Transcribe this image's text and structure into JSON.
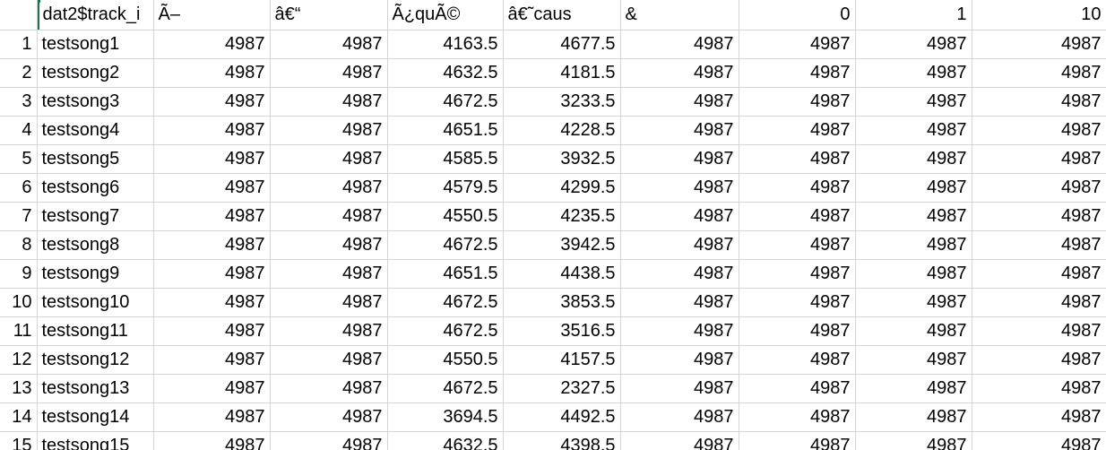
{
  "header": [
    "",
    "dat2$track_i",
    "Ã–",
    "â€“",
    "Ã¿quÃ©",
    "â€˜caus",
    "&",
    "0",
    "1",
    "10"
  ],
  "header_align": [
    "right",
    "left",
    "left",
    "left",
    "left",
    "left",
    "left",
    "right",
    "right",
    "right"
  ],
  "rows": [
    [
      "1",
      "testsong1",
      "4987",
      "4987",
      "4163.5",
      "4677.5",
      "4987",
      "4987",
      "4987",
      "4987"
    ],
    [
      "2",
      "testsong2",
      "4987",
      "4987",
      "4632.5",
      "4181.5",
      "4987",
      "4987",
      "4987",
      "4987"
    ],
    [
      "3",
      "testsong3",
      "4987",
      "4987",
      "4672.5",
      "3233.5",
      "4987",
      "4987",
      "4987",
      "4987"
    ],
    [
      "4",
      "testsong4",
      "4987",
      "4987",
      "4651.5",
      "4228.5",
      "4987",
      "4987",
      "4987",
      "4987"
    ],
    [
      "5",
      "testsong5",
      "4987",
      "4987",
      "4585.5",
      "3932.5",
      "4987",
      "4987",
      "4987",
      "4987"
    ],
    [
      "6",
      "testsong6",
      "4987",
      "4987",
      "4579.5",
      "4299.5",
      "4987",
      "4987",
      "4987",
      "4987"
    ],
    [
      "7",
      "testsong7",
      "4987",
      "4987",
      "4550.5",
      "4235.5",
      "4987",
      "4987",
      "4987",
      "4987"
    ],
    [
      "8",
      "testsong8",
      "4987",
      "4987",
      "4672.5",
      "3942.5",
      "4987",
      "4987",
      "4987",
      "4987"
    ],
    [
      "9",
      "testsong9",
      "4987",
      "4987",
      "4651.5",
      "4438.5",
      "4987",
      "4987",
      "4987",
      "4987"
    ],
    [
      "10",
      "testsong10",
      "4987",
      "4987",
      "4672.5",
      "3853.5",
      "4987",
      "4987",
      "4987",
      "4987"
    ],
    [
      "11",
      "testsong11",
      "4987",
      "4987",
      "4672.5",
      "3516.5",
      "4987",
      "4987",
      "4987",
      "4987"
    ],
    [
      "12",
      "testsong12",
      "4987",
      "4987",
      "4550.5",
      "4157.5",
      "4987",
      "4987",
      "4987",
      "4987"
    ],
    [
      "13",
      "testsong13",
      "4987",
      "4987",
      "4672.5",
      "2327.5",
      "4987",
      "4987",
      "4987",
      "4987"
    ],
    [
      "14",
      "testsong14",
      "4987",
      "4987",
      "3694.5",
      "4492.5",
      "4987",
      "4987",
      "4987",
      "4987"
    ],
    [
      "15",
      "testsong15",
      "4987",
      "4987",
      "4632.5",
      "4398.5",
      "4987",
      "4987",
      "4987",
      "4987"
    ]
  ],
  "colors": {
    "selection": "#217346",
    "gridline": "#d4d4d4"
  }
}
